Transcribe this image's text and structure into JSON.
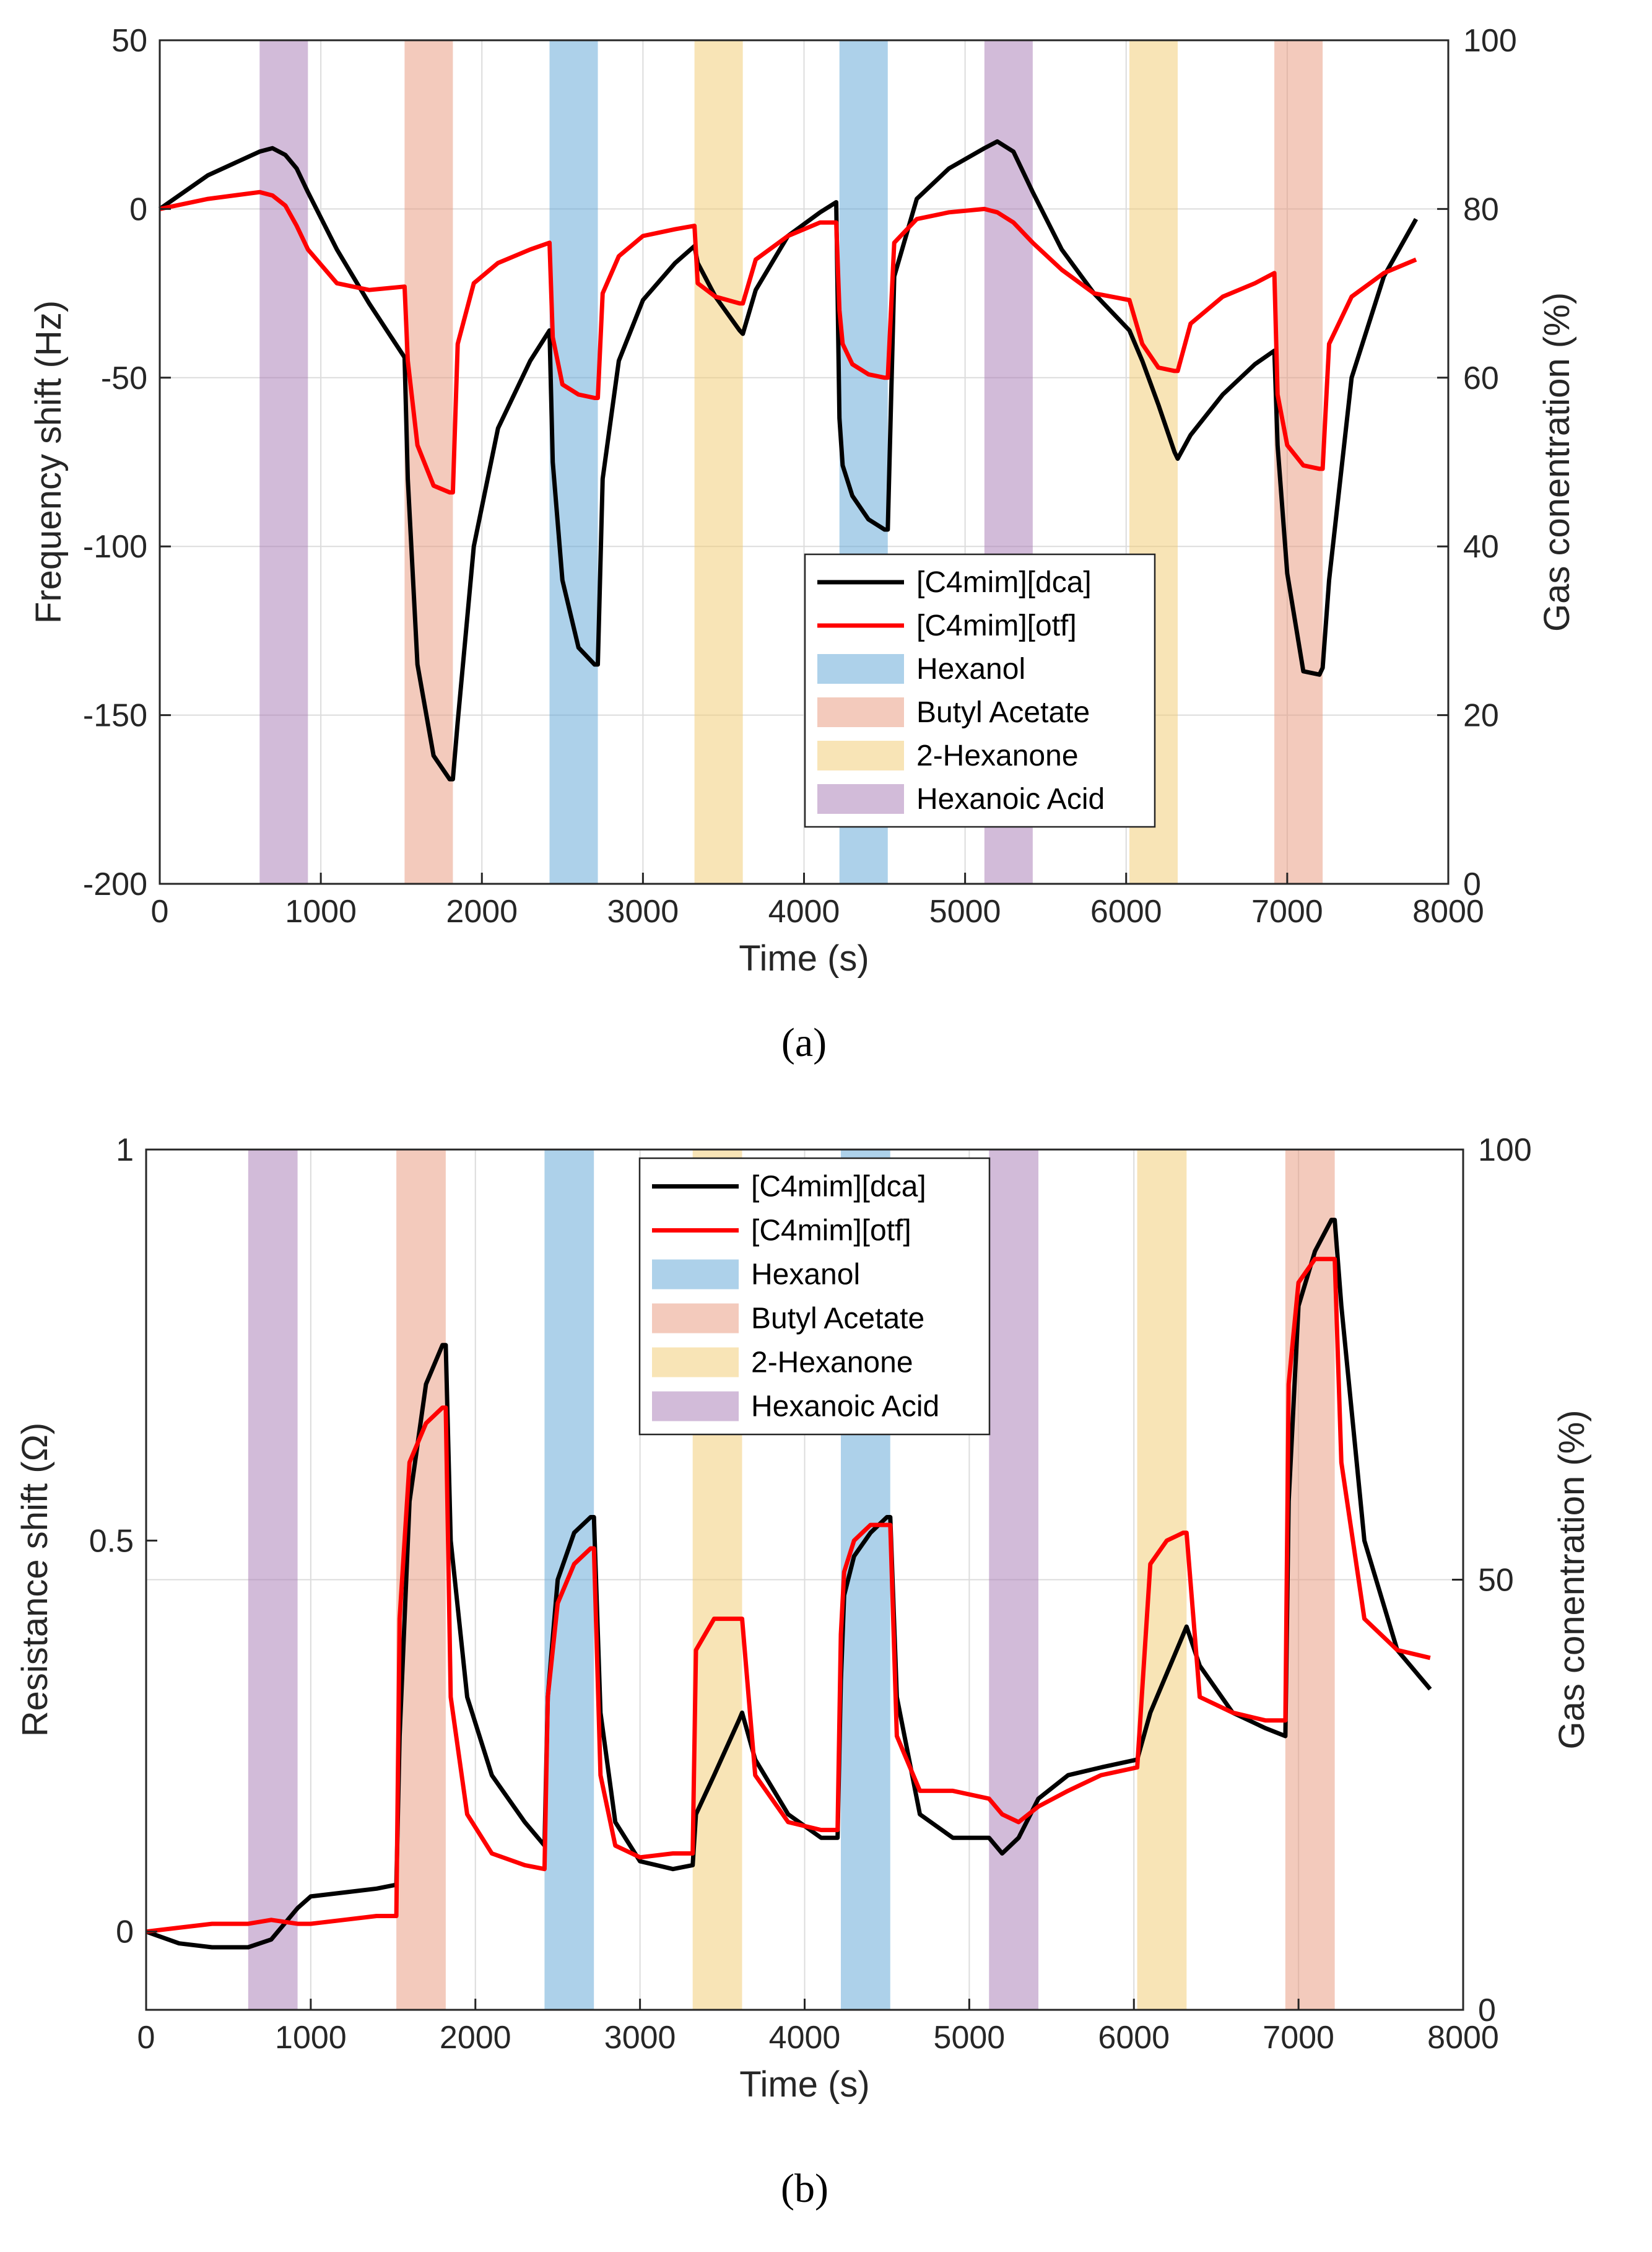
{
  "colors": {
    "Hexanol": "#5ba3d6",
    "Butyl Acetate": "#e8957a",
    "2-Hexanone": "#f2c96e",
    "Hexanoic Acid": "#a677b3",
    "[C4mim][dca]": "#000000",
    "[C4mim][otf]": "#ff0000"
  },
  "chart_data": [
    {
      "type": "line",
      "caption": "(a)",
      "xlabel": "Time (s)",
      "ylabel": "Frequency shift (Hz)",
      "y2label": "Gas conentration (%)",
      "xlim": [
        0,
        8000
      ],
      "ylim": [
        -200,
        50
      ],
      "y2lim": [
        0,
        100
      ],
      "xticks": [
        0,
        1000,
        2000,
        3000,
        4000,
        5000,
        6000,
        7000,
        8000
      ],
      "yticks": [
        -200,
        -150,
        -100,
        -50,
        0,
        50
      ],
      "y2ticks": [
        0,
        20,
        40,
        60,
        80,
        100
      ],
      "grid": true,
      "legend_position": "lower-center-right",
      "legend": [
        "[C4mim][dca]",
        "[C4mim][otf]",
        "Hexanol",
        "Butyl Acetate",
        "2-Hexanone",
        "Hexanoic Acid"
      ],
      "exposures": [
        {
          "gas": "Hexanoic Acid",
          "start": 620,
          "end": 920
        },
        {
          "gas": "Butyl Acetate",
          "start": 1520,
          "end": 1820
        },
        {
          "gas": "Hexanol",
          "start": 2420,
          "end": 2720
        },
        {
          "gas": "2-Hexanone",
          "start": 3320,
          "end": 3620
        },
        {
          "gas": "Hexanol",
          "start": 4220,
          "end": 4520
        },
        {
          "gas": "Hexanoic Acid",
          "start": 5120,
          "end": 5420
        },
        {
          "gas": "2-Hexanone",
          "start": 6020,
          "end": 6320
        },
        {
          "gas": "Butyl Acetate",
          "start": 6920,
          "end": 7220
        }
      ],
      "series": [
        {
          "name": "[C4mim][dca]",
          "x": [
            0,
            300,
            620,
            700,
            780,
            850,
            920,
            1100,
            1300,
            1520,
            1540,
            1600,
            1700,
            1800,
            1820,
            1850,
            1950,
            2100,
            2300,
            2420,
            2440,
            2500,
            2600,
            2700,
            2720,
            2750,
            2850,
            3000,
            3200,
            3320,
            3340,
            3450,
            3600,
            3620,
            3700,
            3900,
            4100,
            4200,
            4220,
            4240,
            4300,
            4400,
            4500,
            4520,
            4560,
            4700,
            4900,
            5120,
            5200,
            5300,
            5420,
            5600,
            5800,
            6020,
            6100,
            6200,
            6300,
            6320,
            6400,
            6600,
            6800,
            6920,
            6940,
            7000,
            7100,
            7200,
            7220,
            7260,
            7400,
            7600,
            7800
          ],
          "y": [
            0,
            10,
            17,
            18,
            16,
            12,
            5,
            -12,
            -28,
            -44,
            -80,
            -135,
            -162,
            -169,
            -169,
            -152,
            -100,
            -65,
            -45,
            -36,
            -75,
            -110,
            -130,
            -135,
            -135,
            -80,
            -45,
            -27,
            -16,
            -11,
            -16,
            -26,
            -36,
            -37,
            -24,
            -8,
            -1,
            2,
            -62,
            -76,
            -85,
            -92,
            -95,
            -95,
            -20,
            3,
            12,
            18,
            20,
            17,
            5,
            -12,
            -25,
            -36,
            -45,
            -58,
            -72,
            -74,
            -67,
            -55,
            -46,
            -42,
            -70,
            -108,
            -137,
            -138,
            -136,
            -110,
            -50,
            -20,
            -3
          ]
        },
        {
          "name": "[C4mim][otf]",
          "x": [
            0,
            300,
            620,
            700,
            780,
            850,
            920,
            1100,
            1300,
            1520,
            1540,
            1600,
            1700,
            1800,
            1820,
            1850,
            1950,
            2100,
            2300,
            2420,
            2440,
            2500,
            2600,
            2700,
            2720,
            2750,
            2850,
            3000,
            3200,
            3320,
            3340,
            3450,
            3600,
            3620,
            3700,
            3900,
            4100,
            4200,
            4220,
            4240,
            4300,
            4400,
            4500,
            4520,
            4560,
            4700,
            4900,
            5120,
            5200,
            5300,
            5420,
            5600,
            5800,
            6020,
            6100,
            6200,
            6300,
            6320,
            6400,
            6600,
            6800,
            6920,
            6940,
            7000,
            7100,
            7200,
            7220,
            7260,
            7400,
            7600,
            7800
          ],
          "y": [
            0,
            3,
            5,
            4,
            1,
            -5,
            -12,
            -22,
            -24,
            -23,
            -45,
            -70,
            -82,
            -84,
            -84,
            -40,
            -22,
            -16,
            -12,
            -10,
            -38,
            -52,
            -55,
            -56,
            -56,
            -25,
            -14,
            -8,
            -6,
            -5,
            -22,
            -26,
            -28,
            -28,
            -15,
            -8,
            -4,
            -4,
            -30,
            -40,
            -46,
            -49,
            -50,
            -50,
            -10,
            -3,
            -1,
            0,
            -1,
            -4,
            -10,
            -18,
            -25,
            -27,
            -40,
            -47,
            -48,
            -48,
            -34,
            -26,
            -22,
            -19,
            -55,
            -70,
            -76,
            -77,
            -77,
            -40,
            -26,
            -19,
            -15
          ]
        }
      ]
    },
    {
      "type": "line",
      "caption": "(b)",
      "xlabel": "Time (s)",
      "ylabel": "Resistance shift (Ω)",
      "y2label": "Gas conentration (%)",
      "xlim": [
        0,
        8000
      ],
      "ylim": [
        -0.1,
        1
      ],
      "y2lim": [
        0,
        100
      ],
      "xticks": [
        0,
        1000,
        2000,
        3000,
        4000,
        5000,
        6000,
        7000,
        8000
      ],
      "yticks": [
        0,
        0.5,
        1
      ],
      "y2ticks": [
        0,
        50,
        100
      ],
      "grid": true,
      "legend_position": "top-center",
      "legend": [
        "[C4mim][dca]",
        "[C4mim][otf]",
        "Hexanol",
        "Butyl Acetate",
        "2-Hexanone",
        "Hexanoic Acid"
      ],
      "exposures": [
        {
          "gas": "Hexanoic Acid",
          "start": 620,
          "end": 920
        },
        {
          "gas": "Butyl Acetate",
          "start": 1520,
          "end": 1820
        },
        {
          "gas": "Hexanol",
          "start": 2420,
          "end": 2720
        },
        {
          "gas": "2-Hexanone",
          "start": 3320,
          "end": 3620
        },
        {
          "gas": "Hexanol",
          "start": 4220,
          "end": 4520
        },
        {
          "gas": "Hexanoic Acid",
          "start": 5120,
          "end": 5420
        },
        {
          "gas": "2-Hexanone",
          "start": 6020,
          "end": 6320
        },
        {
          "gas": "Butyl Acetate",
          "start": 6920,
          "end": 7220
        }
      ],
      "series": [
        {
          "name": "[C4mim][dca]",
          "x": [
            0,
            200,
            400,
            620,
            760,
            920,
            1000,
            1200,
            1400,
            1520,
            1540,
            1600,
            1700,
            1800,
            1820,
            1850,
            1950,
            2100,
            2300,
            2420,
            2440,
            2500,
            2600,
            2700,
            2720,
            2760,
            2850,
            3000,
            3200,
            3320,
            3340,
            3450,
            3600,
            3620,
            3700,
            3900,
            4100,
            4200,
            4220,
            4240,
            4300,
            4400,
            4500,
            4520,
            4560,
            4700,
            4900,
            5120,
            5200,
            5300,
            5420,
            5600,
            5800,
            6020,
            6100,
            6200,
            6300,
            6320,
            6400,
            6600,
            6800,
            6920,
            6940,
            7000,
            7100,
            7200,
            7220,
            7260,
            7400,
            7600,
            7800
          ],
          "y": [
            0,
            -0.015,
            -0.02,
            -0.02,
            -0.01,
            0.03,
            0.045,
            0.05,
            0.055,
            0.06,
            0.25,
            0.55,
            0.7,
            0.75,
            0.75,
            0.5,
            0.3,
            0.2,
            0.14,
            0.11,
            0.3,
            0.45,
            0.51,
            0.53,
            0.53,
            0.28,
            0.14,
            0.09,
            0.08,
            0.085,
            0.15,
            0.2,
            0.27,
            0.28,
            0.22,
            0.15,
            0.12,
            0.12,
            0.32,
            0.43,
            0.48,
            0.51,
            0.53,
            0.53,
            0.3,
            0.15,
            0.12,
            0.12,
            0.1,
            0.12,
            0.17,
            0.2,
            0.21,
            0.22,
            0.28,
            0.33,
            0.38,
            0.39,
            0.34,
            0.28,
            0.26,
            0.25,
            0.55,
            0.8,
            0.87,
            0.91,
            0.91,
            0.8,
            0.5,
            0.36,
            0.31
          ]
        },
        {
          "name": "[C4mim][otf]",
          "x": [
            0,
            200,
            400,
            620,
            760,
            920,
            1000,
            1200,
            1400,
            1520,
            1540,
            1600,
            1700,
            1800,
            1820,
            1850,
            1950,
            2100,
            2300,
            2420,
            2440,
            2500,
            2600,
            2700,
            2720,
            2760,
            2850,
            3000,
            3200,
            3320,
            3340,
            3450,
            3600,
            3620,
            3700,
            3900,
            4100,
            4200,
            4220,
            4240,
            4300,
            4400,
            4500,
            4520,
            4560,
            4700,
            4900,
            5120,
            5200,
            5300,
            5420,
            5600,
            5800,
            6020,
            6100,
            6200,
            6300,
            6320,
            6400,
            6600,
            6800,
            6920,
            6940,
            7000,
            7100,
            7200,
            7220,
            7260,
            7400,
            7600,
            7800
          ],
          "y": [
            0,
            0.005,
            0.01,
            0.01,
            0.015,
            0.01,
            0.01,
            0.015,
            0.02,
            0.02,
            0.4,
            0.6,
            0.65,
            0.67,
            0.67,
            0.3,
            0.15,
            0.1,
            0.085,
            0.08,
            0.3,
            0.42,
            0.47,
            0.49,
            0.49,
            0.2,
            0.11,
            0.095,
            0.1,
            0.1,
            0.36,
            0.4,
            0.4,
            0.4,
            0.2,
            0.14,
            0.13,
            0.13,
            0.38,
            0.46,
            0.5,
            0.52,
            0.52,
            0.52,
            0.25,
            0.18,
            0.18,
            0.17,
            0.15,
            0.14,
            0.16,
            0.18,
            0.2,
            0.21,
            0.47,
            0.5,
            0.51,
            0.51,
            0.3,
            0.28,
            0.27,
            0.27,
            0.7,
            0.83,
            0.86,
            0.86,
            0.86,
            0.6,
            0.4,
            0.36,
            0.35
          ]
        }
      ]
    }
  ]
}
